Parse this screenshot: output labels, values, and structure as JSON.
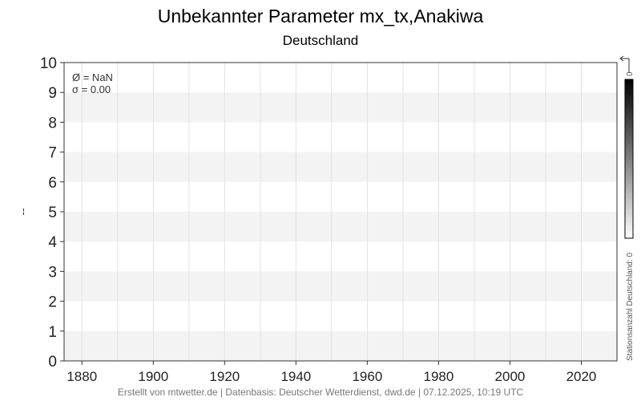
{
  "chart_data": {
    "type": "line",
    "title": "Unbekannter Parameter mx_tx,Anakiwa",
    "subtitle": "Deutschland",
    "ylabel": "--",
    "xlabel": "",
    "xlim": [
      1875,
      2030
    ],
    "ylim": [
      0,
      10
    ],
    "x_ticks": [
      1880,
      1900,
      1920,
      1940,
      1960,
      1980,
      2000,
      2020
    ],
    "y_ticks": [
      0,
      1,
      2,
      3,
      4,
      5,
      6,
      7,
      8,
      9,
      10
    ],
    "grid": true,
    "series": [],
    "stats": {
      "mean": "Ø = NaN",
      "sigma": "σ = 0.00"
    },
    "colorbar": {
      "label": "Stationsanzahl Deutschland: 0",
      "max_label": "0",
      "colors": [
        "#ffffff",
        "#000000"
      ]
    }
  },
  "footer": "Erstellt von mtwetter.de | Datenbasis: Deutscher Wetterdienst, dwd.de | 07.12.2025, 10:19 UTC"
}
